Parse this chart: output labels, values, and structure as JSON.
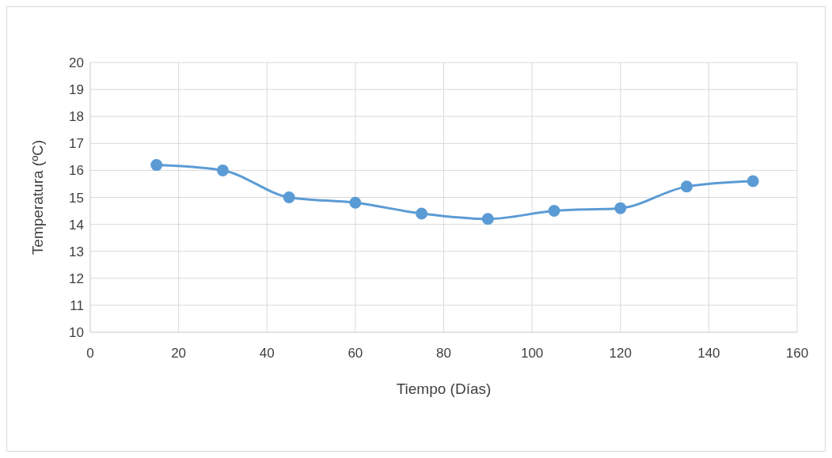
{
  "chart_data": {
    "type": "line",
    "xlabel": "Tiempo (Días)",
    "ylabel": "Temperatura (ºC)",
    "x": [
      15,
      30,
      45,
      60,
      75,
      90,
      105,
      120,
      135,
      150
    ],
    "series": [
      {
        "color": "#5b9bd5",
        "values": [
          16.2,
          16.0,
          15.0,
          14.8,
          14.4,
          14.2,
          14.5,
          14.6,
          15.4,
          15.6
        ]
      }
    ],
    "xlim": [
      0,
      160
    ],
    "xticks": [
      0,
      20,
      40,
      60,
      80,
      100,
      120,
      140,
      160
    ],
    "ylim": [
      10,
      20
    ],
    "yticks": [
      10,
      11,
      12,
      13,
      14,
      15,
      16,
      17,
      18,
      19,
      20
    ],
    "grid": true,
    "marker": "circle",
    "line_style": "solid"
  }
}
